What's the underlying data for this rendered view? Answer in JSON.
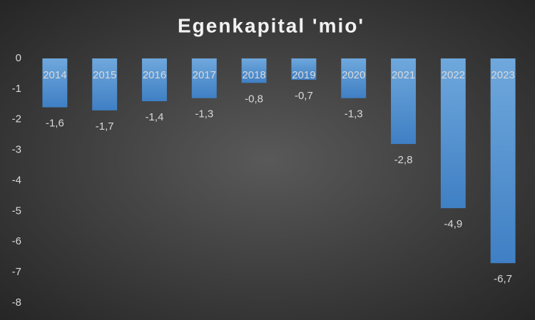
{
  "chart_data": {
    "type": "bar",
    "title": "Egenkapital 'mio'",
    "categories": [
      "2014",
      "2015",
      "2016",
      "2017",
      "2018",
      "2019",
      "2020",
      "2021",
      "2022",
      "2023"
    ],
    "values": [
      -1.6,
      -1.7,
      -1.4,
      -1.3,
      -0.8,
      -0.7,
      -1.3,
      -2.8,
      -4.9,
      -6.7
    ],
    "value_labels": [
      "-1,6",
      "-1,7",
      "-1,4",
      "-1,3",
      "-0,8",
      "-0,7",
      "-1,3",
      "-2,8",
      "-4,9",
      "-6,7"
    ],
    "color": "#5b9bd5",
    "ylim": [
      -8,
      0
    ],
    "yticks": [
      0,
      -1,
      -2,
      -3,
      -4,
      -5,
      -6,
      -7,
      -8
    ],
    "grid": false
  }
}
